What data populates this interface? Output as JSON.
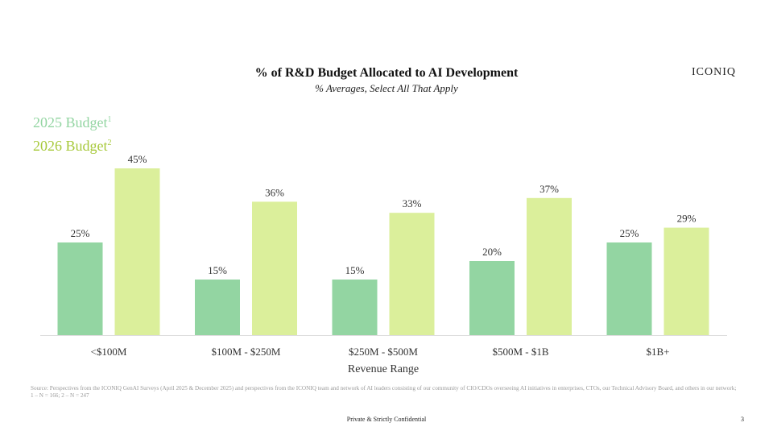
{
  "header": {
    "logo": "ICONIQ"
  },
  "legend": {
    "items": [
      {
        "label": "2025 Budget",
        "sup": "1"
      },
      {
        "label": "2026 Budget",
        "sup": "2"
      }
    ]
  },
  "colors": {
    "series_2025": "#93d5a2",
    "series_2026": "#dbef9b",
    "axis": "#dddddd"
  },
  "chart_data": {
    "type": "bar",
    "title": "% of R&D Budget Allocated to AI Development",
    "subtitle": "% Averages, Select All That Apply",
    "xlabel": "Revenue Range",
    "ylabel": "",
    "ylim": [
      0,
      45
    ],
    "categories": [
      "<$100M",
      "$100M - $250M",
      "$250M - $500M",
      "$500M - $1B",
      "$1B+"
    ],
    "series": [
      {
        "name": "2025 Budget",
        "values": [
          25,
          15,
          15,
          20,
          25
        ],
        "labels": [
          "25%",
          "15%",
          "15%",
          "20%",
          "25%"
        ]
      },
      {
        "name": "2026 Budget",
        "values": [
          45,
          36,
          33,
          37,
          29
        ],
        "labels": [
          "45%",
          "36%",
          "33%",
          "37%",
          "29%"
        ]
      }
    ]
  },
  "footnote": "Source: Perspectives from the ICONIQ GenAI Surveys (April 2025 & December 2025) and perspectives from the ICONIQ team and network of AI leaders consisting of our community of CIO/CDOs overseeing AI initiatives in enterprises, CTOs, our Technical Advisory Board, and others in our network; 1 – N = 166; 2 – N = 247",
  "footer": {
    "text": "Private & Strictly Confidential",
    "page": "3"
  }
}
